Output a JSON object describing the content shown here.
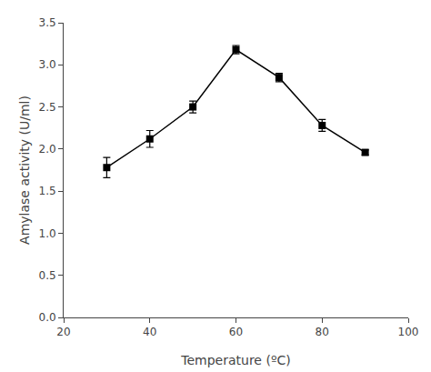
{
  "chart_data": {
    "type": "line",
    "x": [
      30,
      40,
      50,
      60,
      70,
      80,
      90
    ],
    "values": [
      1.78,
      2.12,
      2.5,
      3.18,
      2.85,
      2.28,
      1.96
    ],
    "yerr": [
      0.12,
      0.1,
      0.07,
      0.05,
      0.05,
      0.07,
      0.03
    ],
    "xlabel": "Temperature (ºC)",
    "ylabel": "Amylase activity (U/ml)",
    "xlim": [
      20,
      100
    ],
    "ylim": [
      0.0,
      3.5
    ],
    "xticks": [
      20,
      40,
      60,
      80,
      100
    ],
    "yticks": [
      {
        "value": 0.0,
        "label": "0.0"
      },
      0.5,
      {
        "value": 1.0,
        "label": "1.0"
      },
      1.5,
      {
        "value": 2.0,
        "label": "2.0"
      },
      2.5,
      {
        "value": 3.0,
        "label": "3.0"
      },
      3.5
    ],
    "color": "black",
    "marker": "square",
    "line_style": "solid",
    "grid": false
  }
}
